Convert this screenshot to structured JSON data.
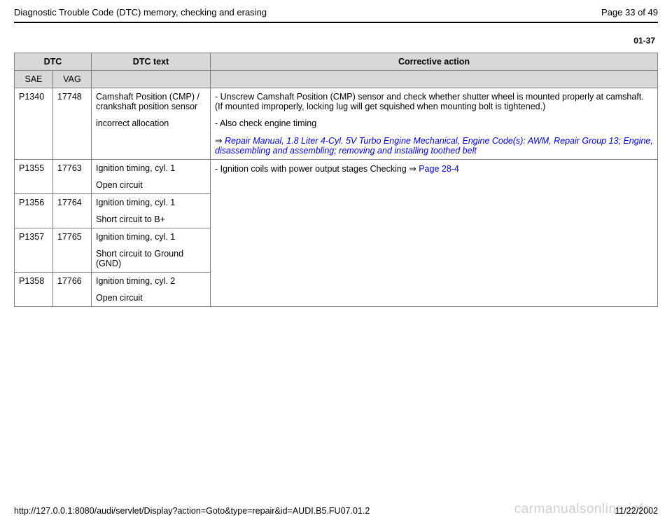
{
  "header": {
    "title": "Diagnostic Trouble Code (DTC) memory, checking and erasing",
    "page_label": "Page 33 of 49"
  },
  "section_code": "01-37",
  "table": {
    "head": {
      "dtc": "DTC",
      "dtc_text": "DTC text",
      "corrective": "Corrective action",
      "sae": "SAE",
      "vag": "VAG"
    },
    "rows": {
      "r1": {
        "sae": "P1340",
        "vag": "17748",
        "text_a": "Camshaft Position (CMP) / crankshaft position sensor",
        "text_b": "incorrect allocation",
        "corr_a": "- Unscrew Camshaft Position (CMP) sensor and check whether shutter wheel is mounted properly at camshaft. (If mounted improperly, locking lug will get squished when mounting bolt is tightened.)",
        "corr_b": "- Also check engine timing",
        "corr_link_prefix": "  ",
        "corr_link": "Repair Manual, 1.8 Liter 4-Cyl. 5V Turbo Engine Mechanical, Engine Code(s): AWM, Repair Group 13; Engine, disassembling and assembling; removing and installing toothed belt"
      },
      "r2": {
        "sae": "P1355",
        "vag": "17763",
        "text_a": "Ignition timing, cyl. 1",
        "text_b": "Open circuit",
        "corr_a": "- Ignition coils with power output stages Checking  ",
        "corr_link": "Page 28-4"
      },
      "r3": {
        "sae": "P1356",
        "vag": "17764",
        "text_a": "Ignition timing, cyl. 1",
        "text_b": "Short circuit to B+"
      },
      "r4": {
        "sae": "P1357",
        "vag": "17765",
        "text_a": "Ignition timing, cyl. 1",
        "text_b": "Short circuit to Ground (GND)"
      },
      "r5": {
        "sae": "P1358",
        "vag": "17766",
        "text_a": "Ignition timing, cyl. 2",
        "text_b": "Open circuit"
      }
    }
  },
  "footer": {
    "url": "http://127.0.0.1:8080/audi/servlet/Display?action=Goto&type=repair&id=AUDI.B5.FU07.01.2",
    "date": "11/22/2002"
  },
  "watermark": "carmanualsonline.info",
  "arrow_glyph": "⇒"
}
